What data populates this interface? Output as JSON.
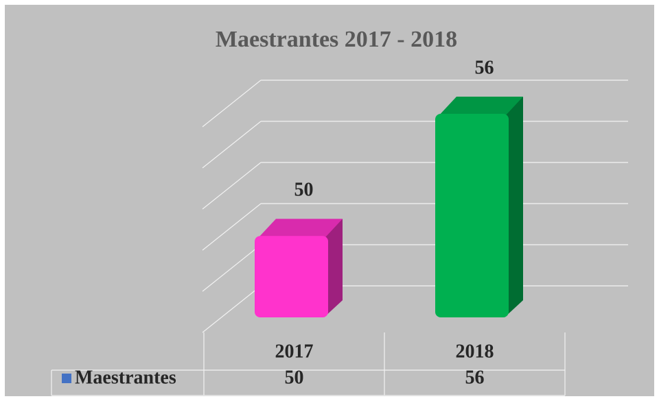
{
  "chart_data": {
    "type": "bar3d",
    "title": "Maestrantes  2017 - 2018",
    "categories": [
      "2017",
      "2018"
    ],
    "series": [
      {
        "name": "Maestrantes",
        "color": "#4472c4",
        "values": [
          50,
          56
        ]
      }
    ],
    "point_colors": [
      "#ff33cc",
      "#00b050"
    ],
    "ylim": [
      46,
      56
    ],
    "yticks": [
      46,
      48,
      50,
      52,
      54,
      56
    ],
    "grid": true,
    "data_table": true
  }
}
